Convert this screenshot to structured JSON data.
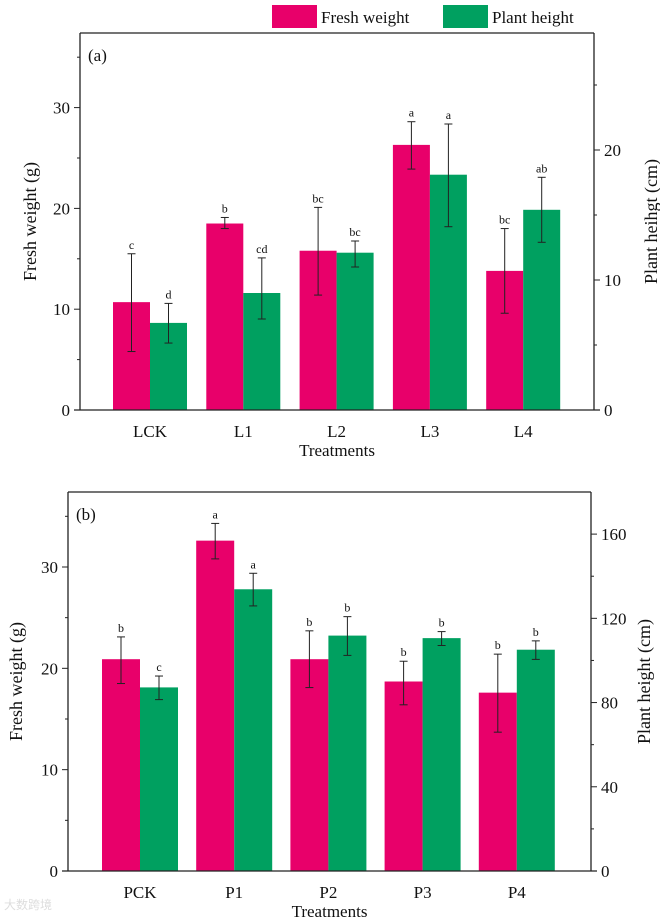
{
  "legend": {
    "fresh": "Fresh weight",
    "height": "Plant height"
  },
  "colors": {
    "fresh": "#e8006a",
    "height": "#00a060"
  },
  "watermark": "大数跨境",
  "chart_data": [
    {
      "type": "bar",
      "panel_label": "(a)",
      "xlabel": "Treatments",
      "ylabel_left": "Fresh weight (g)",
      "ylabel_right": "Plant heihgt (cm)",
      "categories": [
        "LCK",
        "L1",
        "L2",
        "L3",
        "L4"
      ],
      "ylim_left": [
        0,
        37.4
      ],
      "ylim_right": [
        0,
        29
      ],
      "yticks_left": [
        0,
        10,
        20,
        30
      ],
      "yticks_right": [
        0,
        10,
        20
      ],
      "series": [
        {
          "name": "Fresh weight",
          "axis": "left",
          "values": [
            10.7,
            18.5,
            15.8,
            26.3,
            13.8
          ],
          "err_low": [
            5.8,
            18.0,
            11.4,
            23.9,
            9.6
          ],
          "err_high": [
            15.5,
            19.1,
            20.1,
            28.6,
            18.0
          ],
          "letters": [
            "c",
            "b",
            "bc",
            "a",
            "bc"
          ]
        },
        {
          "name": "Plant height",
          "axis": "right",
          "values": [
            6.7,
            9.0,
            12.1,
            18.1,
            15.4
          ],
          "err_low": [
            5.15,
            7.0,
            11.0,
            14.1,
            12.9
          ],
          "err_high": [
            8.2,
            11.7,
            13.0,
            22.0,
            17.9
          ],
          "letters": [
            "d",
            "cd",
            "bc",
            "a",
            "ab"
          ]
        }
      ]
    },
    {
      "type": "bar",
      "panel_label": "(b)",
      "xlabel": "Treatments",
      "ylabel_left": "Fresh weight (g)",
      "ylabel_right": "Plant height (cm)",
      "categories": [
        "PCK",
        "P1",
        "P2",
        "P3",
        "P4"
      ],
      "ylim_left": [
        0,
        37.4
      ],
      "ylim_right": [
        0,
        180
      ],
      "yticks_left": [
        0,
        10,
        20,
        30
      ],
      "yticks_right": [
        0,
        40,
        80,
        120,
        160
      ],
      "series": [
        {
          "name": "Fresh weight",
          "axis": "left",
          "values": [
            20.9,
            32.6,
            20.9,
            18.7,
            17.6
          ],
          "err_low": [
            18.5,
            30.8,
            18.1,
            16.4,
            13.7
          ],
          "err_high": [
            23.1,
            34.3,
            23.7,
            20.7,
            21.4
          ],
          "letters": [
            "b",
            "a",
            "b",
            "b",
            "b"
          ]
        },
        {
          "name": "Plant height",
          "axis": "right",
          "values": [
            87.2,
            133.8,
            111.8,
            110.6,
            105.1
          ],
          "err_low": [
            81.4,
            125.9,
            102.4,
            107.1,
            100.5
          ],
          "err_high": [
            92.6,
            141.4,
            120.8,
            113.7,
            109.3
          ],
          "letters": [
            "c",
            "a",
            "b",
            "b",
            "b"
          ]
        }
      ]
    }
  ]
}
